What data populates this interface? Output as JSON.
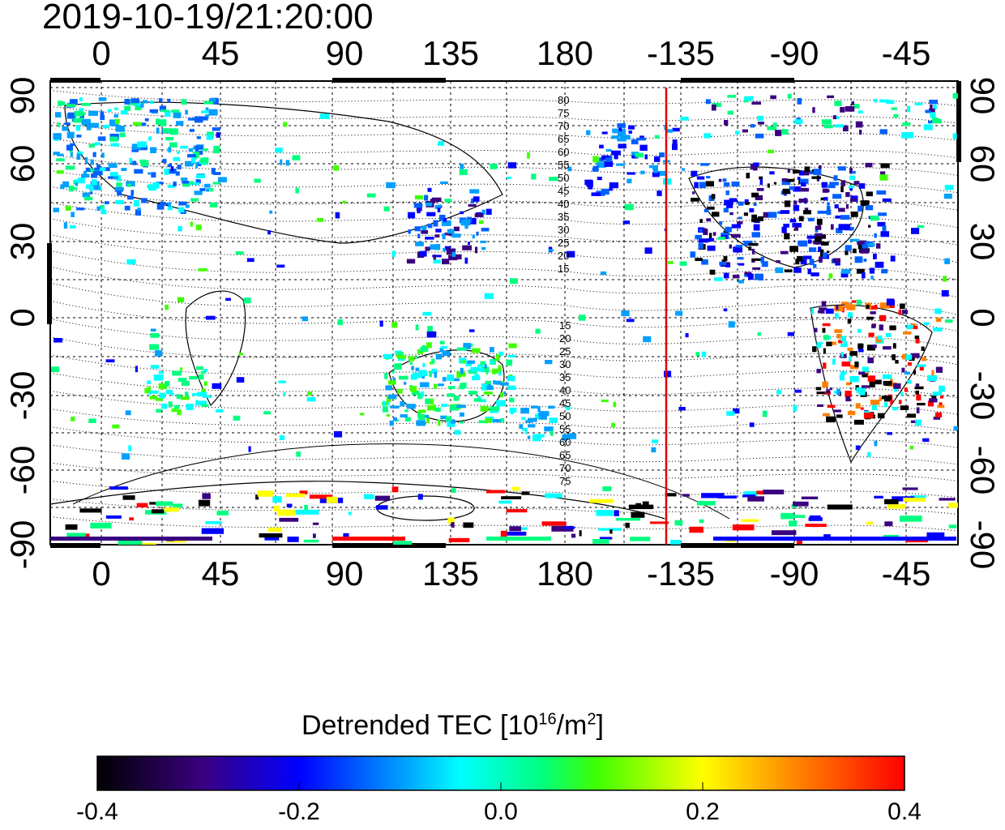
{
  "title": "2019-10-19/21:20:00",
  "map": {
    "top_ticks": [
      "0",
      "45",
      "90",
      "135",
      "180",
      "-135",
      "-90",
      "-45"
    ],
    "bottom_ticks": [
      "0",
      "45",
      "90",
      "135",
      "180",
      "-135",
      "-90",
      "-45"
    ],
    "left_ticks": [
      "90",
      "60",
      "30",
      "0",
      "-30",
      "-60",
      "-90"
    ],
    "right_ticks": [
      "90",
      "60",
      "30",
      "0",
      "-30",
      "-60",
      "-90"
    ],
    "contour_labels_north": [
      "80",
      "75",
      "70",
      "65",
      "60",
      "55",
      "50",
      "45",
      "40",
      "35",
      "30",
      "25",
      "20",
      "15"
    ],
    "contour_labels_south": [
      "15",
      "20",
      "25",
      "30",
      "35",
      "40",
      "45",
      "50",
      "55",
      "60",
      "65",
      "70",
      "75"
    ],
    "terminator_color": "#e00000"
  },
  "colorbar": {
    "title_main": "Detrended TEC  [10",
    "title_sup1": "16",
    "title_mid": "/m",
    "title_sup2": "2",
    "title_end": "]",
    "ticks": [
      "-0.4",
      "-0.2",
      "0.0",
      "0.2",
      "0.4"
    ]
  }
}
